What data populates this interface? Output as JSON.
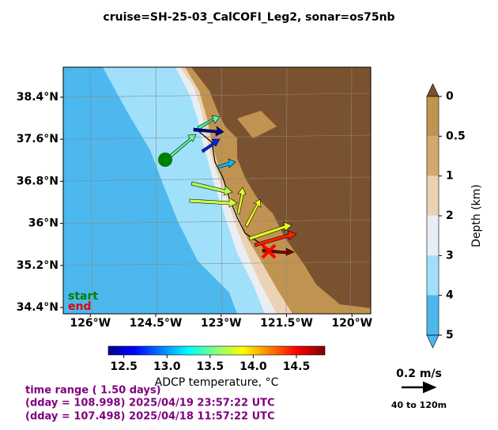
{
  "title": "cruise=SH-25-03_CalCOFI_Leg2,   sonar=os75nb",
  "map": {
    "lon_range": [
      -126.62,
      -119.57
    ],
    "lat_range": [
      34.28,
      38.97
    ],
    "lon_ticks": [
      {
        "value": -126,
        "label": "126°W"
      },
      {
        "value": -124.5,
        "label": "124.5°W"
      },
      {
        "value": -123,
        "label": "123°W"
      },
      {
        "value": -121.5,
        "label": "121.5°W"
      },
      {
        "value": -120,
        "label": "120°W"
      }
    ],
    "lat_ticks": [
      {
        "value": 38.4,
        "label": "38.4°N"
      },
      {
        "value": 37.6,
        "label": "37.6°N"
      },
      {
        "value": 36.8,
        "label": "36.8°N"
      },
      {
        "value": 36,
        "label": "36°N"
      },
      {
        "value": 35.2,
        "label": "35.2°N"
      },
      {
        "value": 34.4,
        "label": "34.4°N"
      }
    ],
    "start_label": "start",
    "end_label": "end"
  },
  "temperature_colorbar": {
    "label": "ADCP temperature, °C",
    "range": [
      12.32,
      14.83
    ],
    "ticks": [
      {
        "value": 12.5,
        "label": "12.5"
      },
      {
        "value": 13,
        "label": "13.0"
      },
      {
        "value": 13.5,
        "label": "13.5"
      },
      {
        "value": 14,
        "label": "14.0"
      },
      {
        "value": 14.5,
        "label": "14.5"
      }
    ]
  },
  "depth_colorbar": {
    "label": "Depth (km)",
    "ticks": [
      0,
      0.5,
      1,
      2,
      3,
      4,
      5
    ]
  },
  "info": [
    "time range ( 1.50 days)",
    "(dday = 108.998) 2025/04/19 23:57:22 UTC",
    "(dday = 107.498) 2025/04/18 11:57:22 UTC"
  ],
  "scale": {
    "label": "0.2 m/s",
    "depth_range": "40 to 120m"
  }
}
